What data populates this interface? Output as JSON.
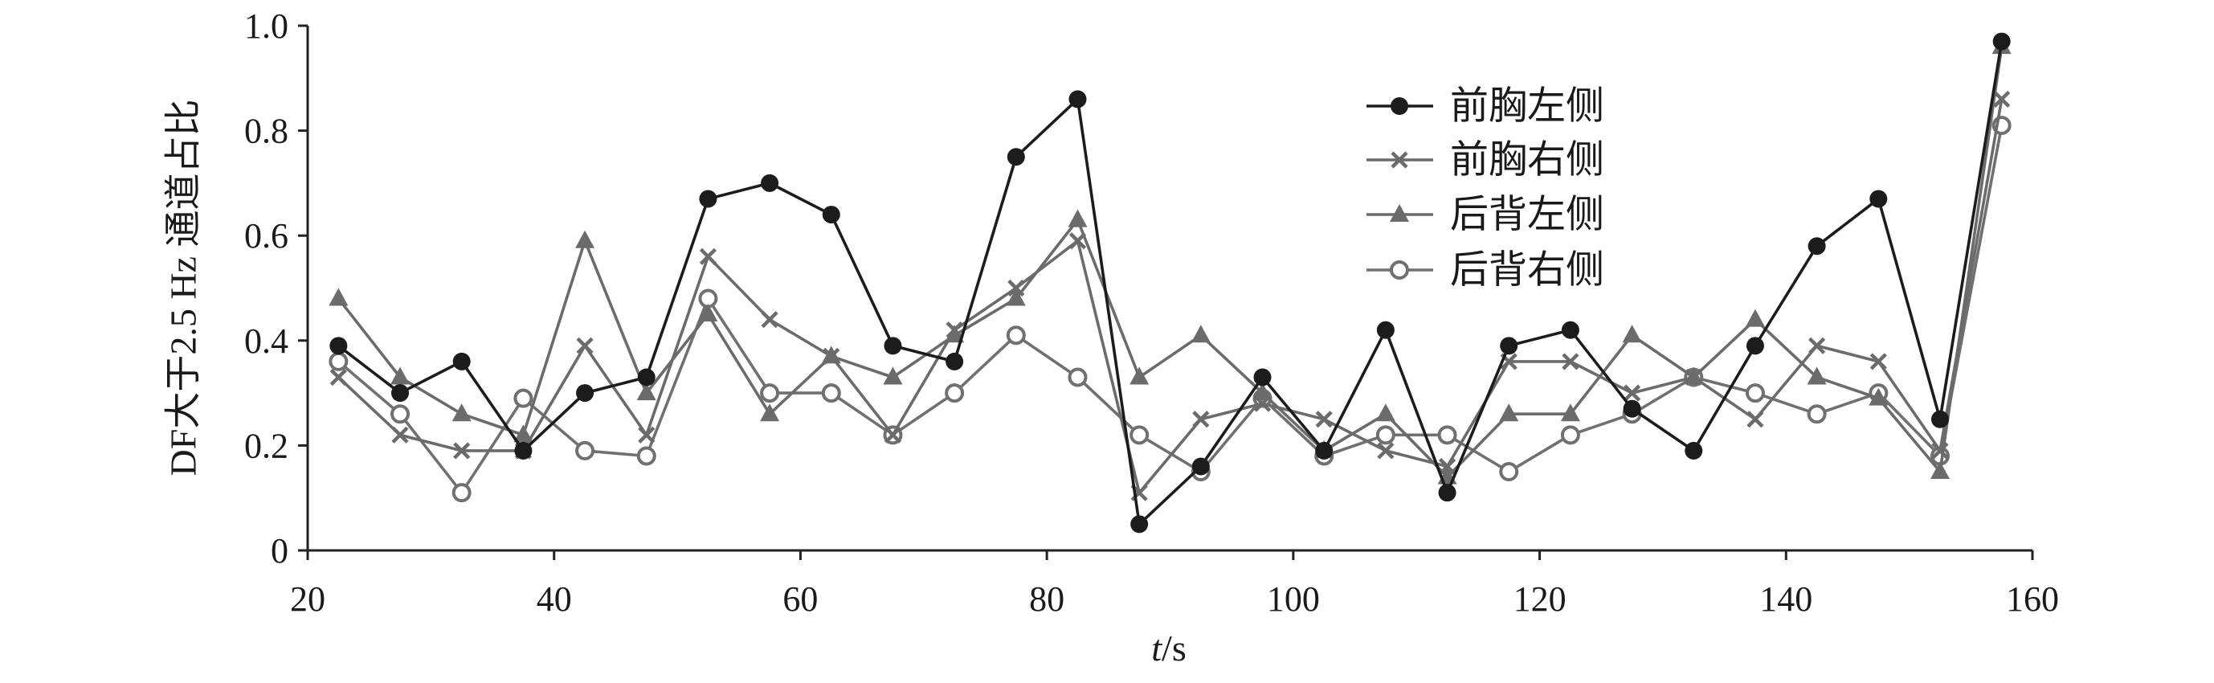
{
  "chart_data": {
    "type": "line",
    "title": "",
    "xlabel": "t/s",
    "ylabel": "DF大于2.5 Hz 通道占比",
    "xlim": [
      20,
      160
    ],
    "ylim": [
      0,
      1.0
    ],
    "xticks": [
      20,
      40,
      60,
      80,
      100,
      120,
      140,
      160
    ],
    "xtick_labels": [
      "20",
      "40",
      "60",
      "80",
      "100",
      "120",
      "140",
      "160"
    ],
    "yticks": [
      0,
      0.2,
      0.4,
      0.6,
      0.8,
      1.0
    ],
    "ytick_labels": [
      "0",
      "0.2",
      "0.4",
      "0.6",
      "0.8",
      "1.0"
    ],
    "grid": false,
    "legend_position": "top-center",
    "x": [
      22.5,
      27.5,
      32.5,
      37.5,
      42.5,
      47.5,
      52.5,
      57.5,
      62.5,
      67.5,
      72.5,
      77.5,
      82.5,
      87.5,
      92.5,
      97.5,
      102.5,
      107.5,
      112.5,
      117.5,
      122.5,
      127.5,
      132.5,
      137.5,
      142.5,
      147.5,
      152.5,
      157.5
    ],
    "series": [
      {
        "name": "前胸左侧",
        "marker": "filled-circle",
        "color": "#1c1c1c",
        "values": [
          0.39,
          0.3,
          0.36,
          0.19,
          0.3,
          0.33,
          0.67,
          0.7,
          0.64,
          0.39,
          0.36,
          0.75,
          0.86,
          0.05,
          0.16,
          0.33,
          0.19,
          0.42,
          0.11,
          0.39,
          0.42,
          0.27,
          0.19,
          0.39,
          0.58,
          0.67,
          0.25,
          0.97
        ]
      },
      {
        "name": "前胸右侧",
        "marker": "cross",
        "color": "#6b6b6b",
        "values": [
          0.33,
          0.22,
          0.19,
          0.19,
          0.39,
          0.22,
          0.56,
          0.44,
          0.37,
          0.22,
          0.42,
          0.5,
          0.59,
          0.11,
          0.25,
          0.28,
          0.25,
          0.19,
          0.16,
          0.36,
          0.36,
          0.3,
          0.33,
          0.25,
          0.39,
          0.36,
          0.19,
          0.86
        ]
      },
      {
        "name": "后背左侧",
        "marker": "triangle",
        "color": "#6b6b6b",
        "values": [
          0.48,
          0.33,
          0.26,
          0.22,
          0.59,
          0.3,
          0.45,
          0.26,
          0.37,
          0.33,
          0.41,
          0.48,
          0.63,
          0.33,
          0.41,
          0.3,
          0.19,
          0.26,
          0.14,
          0.26,
          0.26,
          0.41,
          0.33,
          0.44,
          0.33,
          0.29,
          0.15,
          0.96
        ]
      },
      {
        "name": "后背右侧",
        "marker": "open-circle",
        "color": "#707070",
        "values": [
          0.36,
          0.26,
          0.11,
          0.29,
          0.19,
          0.18,
          0.48,
          0.3,
          0.3,
          0.22,
          0.3,
          0.41,
          0.33,
          0.22,
          0.15,
          0.29,
          0.18,
          0.22,
          0.22,
          0.15,
          0.22,
          0.26,
          0.33,
          0.3,
          0.26,
          0.3,
          0.18,
          0.81
        ]
      }
    ]
  }
}
